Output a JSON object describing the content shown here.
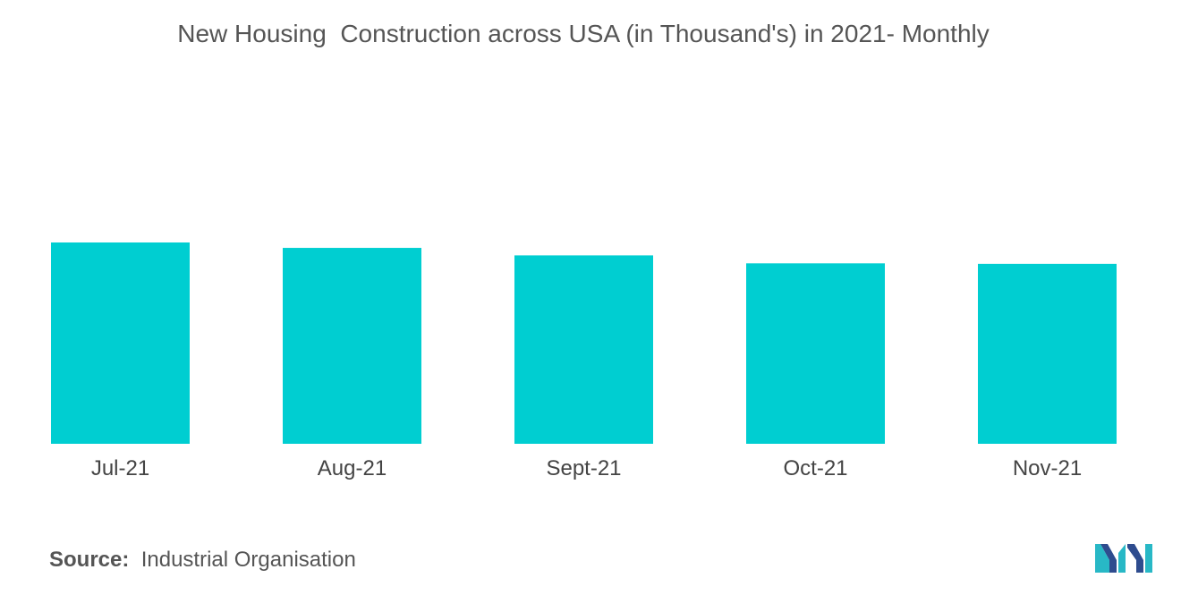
{
  "chart_data": {
    "type": "bar",
    "title": "New Housing  Construction across USA (in Thousand's) in 2021- Monthly",
    "categories": [
      "Jul-21",
      "Aug-21",
      "Sept-21",
      "Oct-21",
      "Nov-21"
    ],
    "values": [
      1640,
      1596,
      1535,
      1470,
      1466
    ],
    "ylim": [
      0,
      1640
    ],
    "xlabel": "",
    "ylabel": "",
    "grid": false,
    "bar_color": "#00CED1"
  },
  "source": {
    "label": "Source:",
    "text": "Industrial Organisation"
  },
  "logo": {
    "icon": "mordor-intelligence-logo-icon",
    "colors": [
      "#2E4C8E",
      "#28B8C6"
    ]
  }
}
